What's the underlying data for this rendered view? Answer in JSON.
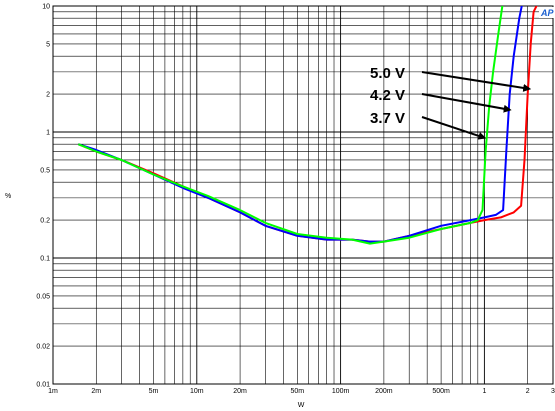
{
  "chart_data": {
    "type": "line",
    "title": "",
    "xlabel": "W",
    "ylabel": "%",
    "x_scale": "log",
    "y_scale": "log",
    "xlim": [
      0.001,
      3
    ],
    "ylim": [
      0.01,
      10
    ],
    "grid": true,
    "legend": "none",
    "x_tick_labels": [
      "1m",
      "2m",
      "5m",
      "10m",
      "20m",
      "50m",
      "100m",
      "200m",
      "500m",
      "1",
      "2",
      "3"
    ],
    "y_tick_labels": [
      "0.01",
      "0.02",
      "0.05",
      "0.1",
      "0.2",
      "0.5",
      "1",
      "2",
      "5",
      "10"
    ],
    "logo_text": "AP",
    "series": [
      {
        "name": "5.0 V",
        "color": "#ff0000",
        "x": [
          0.0015,
          0.002,
          0.003,
          0.005,
          0.008,
          0.012,
          0.02,
          0.03,
          0.05,
          0.08,
          0.12,
          0.16,
          0.2,
          0.3,
          0.5,
          0.8,
          1.0,
          1.3,
          1.6,
          1.8,
          1.9,
          2.0,
          2.1,
          2.2,
          2.4
        ],
        "y": [
          0.8,
          0.7,
          0.6,
          0.47,
          0.37,
          0.3,
          0.23,
          0.18,
          0.15,
          0.14,
          0.14,
          0.135,
          0.135,
          0.15,
          0.17,
          0.19,
          0.2,
          0.21,
          0.23,
          0.26,
          0.6,
          2.0,
          5.0,
          9.0,
          11
        ]
      },
      {
        "name": "4.2 V",
        "color": "#0000ff",
        "x": [
          0.0015,
          0.002,
          0.003,
          0.005,
          0.008,
          0.012,
          0.02,
          0.03,
          0.05,
          0.08,
          0.12,
          0.16,
          0.2,
          0.3,
          0.5,
          0.8,
          1.0,
          1.2,
          1.35,
          1.42,
          1.5,
          1.6,
          1.75,
          1.85
        ],
        "y": [
          0.8,
          0.72,
          0.6,
          0.46,
          0.36,
          0.3,
          0.23,
          0.18,
          0.15,
          0.14,
          0.14,
          0.135,
          0.135,
          0.15,
          0.18,
          0.2,
          0.21,
          0.22,
          0.24,
          0.7,
          2.0,
          4.0,
          8.0,
          11
        ]
      },
      {
        "name": "3.7 V",
        "color": "#00ff00",
        "x": [
          0.0015,
          0.002,
          0.003,
          0.005,
          0.008,
          0.012,
          0.02,
          0.03,
          0.05,
          0.08,
          0.12,
          0.16,
          0.2,
          0.3,
          0.5,
          0.8,
          0.9,
          0.97,
          1.02,
          1.08,
          1.15,
          1.25,
          1.35
        ],
        "y": [
          0.8,
          0.7,
          0.6,
          0.46,
          0.37,
          0.31,
          0.24,
          0.19,
          0.155,
          0.145,
          0.14,
          0.13,
          0.135,
          0.145,
          0.17,
          0.19,
          0.2,
          0.24,
          0.7,
          1.6,
          3.0,
          6.0,
          11
        ]
      }
    ],
    "annotations": [
      {
        "text": "5.0 V",
        "target_x": 2.05,
        "target_y": 2.2
      },
      {
        "text": "4.2 V",
        "target_x": 1.5,
        "target_y": 1.5
      },
      {
        "text": "3.7 V",
        "target_x": 1.0,
        "target_y": 0.9
      }
    ]
  }
}
